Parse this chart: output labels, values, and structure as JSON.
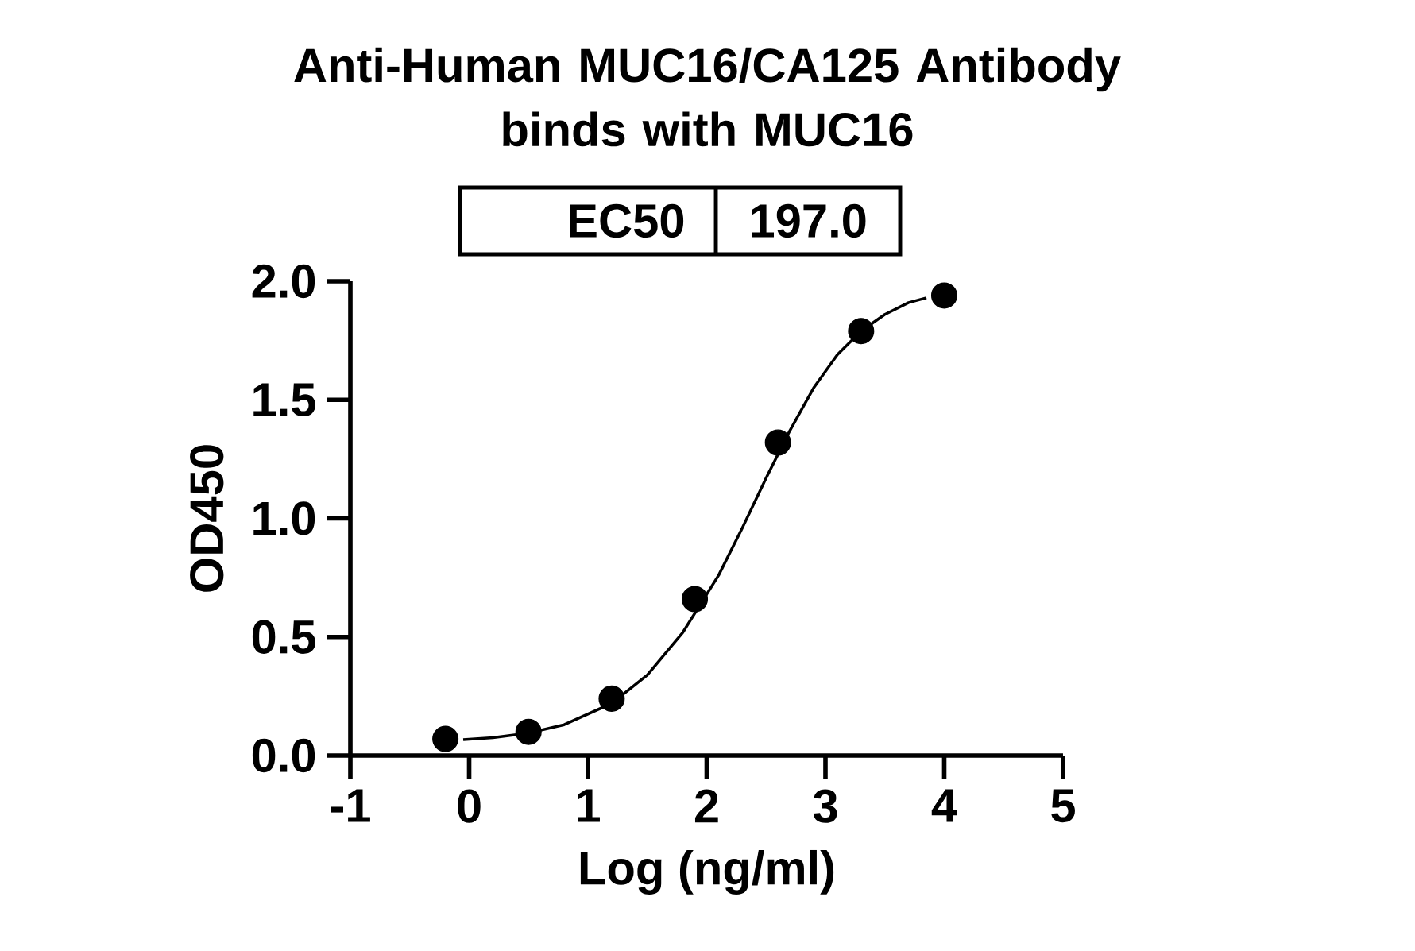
{
  "chart_data": {
    "type": "scatter",
    "title": "Anti-Human MUC16/CA125 Antibody\nbinds with MUC16",
    "xlabel": "Log (ng/ml)",
    "ylabel": "OD450",
    "annotations": [
      "EC50",
      "197.0"
    ],
    "series": [
      {
        "color": "#000000",
        "marker": "circle",
        "x": [
          -0.2,
          0.5,
          1.2,
          1.9,
          2.6,
          3.3,
          4.0
        ],
        "values": [
          0.07,
          0.1,
          0.24,
          0.66,
          1.32,
          1.79,
          1.94
        ]
      },
      {
        "type": "line",
        "color": "#000000",
        "marker": "none",
        "line_style": "solid",
        "x": [
          -0.05,
          0.2,
          0.5,
          0.8,
          1.2,
          1.5,
          1.8,
          2.1,
          2.3,
          2.5,
          2.7,
          2.9,
          3.1,
          3.3,
          3.5,
          3.7,
          3.85
        ],
        "values": [
          0.067,
          0.075,
          0.095,
          0.13,
          0.22,
          0.34,
          0.52,
          0.76,
          0.96,
          1.17,
          1.37,
          1.55,
          1.69,
          1.79,
          1.86,
          1.91,
          1.93
        ]
      }
    ],
    "xlim": [
      -1,
      5
    ],
    "ylim": [
      0,
      2
    ],
    "xticks": [
      -1,
      0,
      1,
      2,
      3,
      4,
      5
    ],
    "yticks": [
      {
        "value": 0,
        "label": "0.0"
      },
      {
        "value": 0.5,
        "label": "0.5"
      },
      {
        "value": 1,
        "label": "1.0"
      },
      {
        "value": 1.5,
        "label": "1.5"
      },
      {
        "value": 2,
        "label": "2.0"
      }
    ],
    "grid": false
  }
}
